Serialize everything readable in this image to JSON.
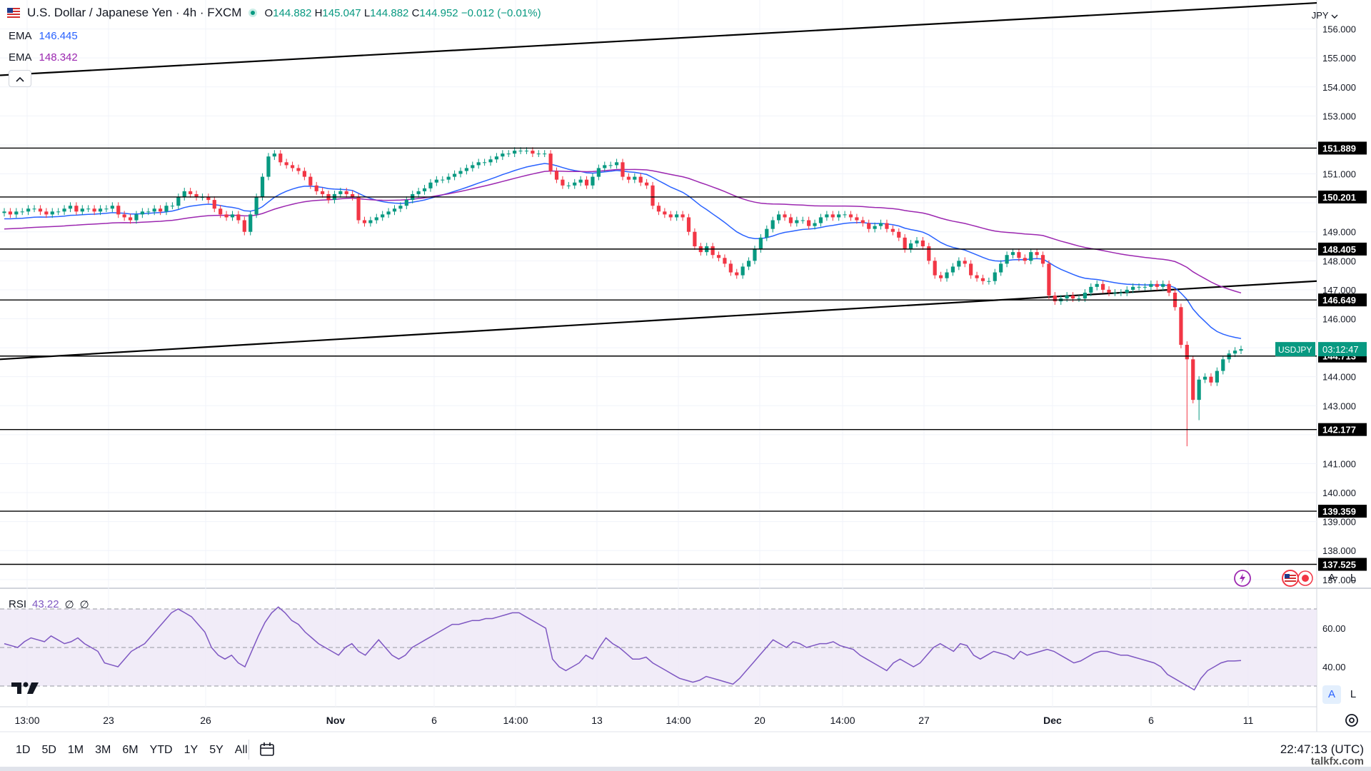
{
  "header": {
    "title": "U.S. Dollar / Japanese Yen · 4h · FXCM",
    "ohlc": {
      "o_label": "O",
      "o": "144.882",
      "h_label": "H",
      "h": "145.047",
      "l_label": "L",
      "l": "144.882",
      "c_label": "C",
      "c": "144.952",
      "change": "−0.012 (−0.01%)"
    }
  },
  "indicators": {
    "ema1": {
      "label": "EMA",
      "value": "146.445",
      "color": "#2962ff"
    },
    "ema2": {
      "label": "EMA",
      "value": "148.342",
      "color": "#9c27b0"
    },
    "rsi": {
      "label": "RSI",
      "value": "43.22",
      "extra1": "∅",
      "extra2": "∅",
      "color": "#7e57c2"
    }
  },
  "currency_tag": "JPY",
  "price_scale": {
    "ticks": [
      "156.000",
      "155.000",
      "154.000",
      "153.000",
      "151.000",
      "149.000",
      "148.000",
      "147.000",
      "146.000",
      "144.000",
      "143.000",
      "141.000",
      "140.000",
      "139.000",
      "138.000",
      "137.000"
    ]
  },
  "levels": [
    "151.889",
    "150.201",
    "148.405",
    "146.649",
    "144.713",
    "142.177",
    "139.359",
    "137.525"
  ],
  "symbol_label": {
    "name": "USDJPY",
    "countdown": "03:12:47"
  },
  "rsi_scale": [
    "60.00",
    "40.00"
  ],
  "time_axis": [
    "13:00",
    "23",
    "26",
    "Nov",
    "6",
    "14:00",
    "13",
    "14:00",
    "20",
    "14:00",
    "27",
    "Dec",
    "6",
    "11"
  ],
  "ranges": [
    "1D",
    "5D",
    "1M",
    "3M",
    "6M",
    "YTD",
    "1Y",
    "5Y",
    "All"
  ],
  "clock": "22:47:13 (UTC)",
  "scale_buttons": {
    "auto": "A",
    "log": "L"
  },
  "watermark": "talkfx.com",
  "colors": {
    "up": "#089981",
    "down": "#f23645",
    "rsi_band": "#ede7f6"
  },
  "chart_data": {
    "type": "candlestick",
    "symbol": "USDJPY",
    "timeframe": "4h",
    "ylim": [
      136.7,
      157.0
    ],
    "closes": [
      149.7,
      149.6,
      149.7,
      149.7,
      149.8,
      149.8,
      149.7,
      149.6,
      149.7,
      149.7,
      149.8,
      149.9,
      149.7,
      149.8,
      149.8,
      149.7,
      149.8,
      149.8,
      149.9,
      149.6,
      149.5,
      149.4,
      149.6,
      149.7,
      149.7,
      149.8,
      149.7,
      149.9,
      149.9,
      150.2,
      150.4,
      150.3,
      150.2,
      150.2,
      150.1,
      149.8,
      149.6,
      149.5,
      149.6,
      149.4,
      149.0,
      149.6,
      150.2,
      150.9,
      151.6,
      151.7,
      151.4,
      151.3,
      151.2,
      151.1,
      150.9,
      150.6,
      150.4,
      150.3,
      150.1,
      150.3,
      150.4,
      150.3,
      150.2,
      149.4,
      149.3,
      149.4,
      149.5,
      149.6,
      149.7,
      149.8,
      149.9,
      150.1,
      150.3,
      150.4,
      150.5,
      150.7,
      150.8,
      150.8,
      150.9,
      151.0,
      151.1,
      151.2,
      151.3,
      151.4,
      151.4,
      151.5,
      151.6,
      151.7,
      151.7,
      151.8,
      151.8,
      151.8,
      151.7,
      151.7,
      151.7,
      151.1,
      150.8,
      150.6,
      150.6,
      150.7,
      150.8,
      150.6,
      150.9,
      151.2,
      151.3,
      151.3,
      151.4,
      150.9,
      150.8,
      150.9,
      150.7,
      150.6,
      149.9,
      149.7,
      149.6,
      149.5,
      149.6,
      149.5,
      149.0,
      148.5,
      148.3,
      148.5,
      148.2,
      148.1,
      147.9,
      147.6,
      147.5,
      147.8,
      148.0,
      148.4,
      148.8,
      149.1,
      149.4,
      149.6,
      149.5,
      149.3,
      149.4,
      149.4,
      149.2,
      149.3,
      149.5,
      149.6,
      149.5,
      149.6,
      149.6,
      149.5,
      149.4,
      149.3,
      149.1,
      149.2,
      149.3,
      149.1,
      149.0,
      148.8,
      148.4,
      148.6,
      148.7,
      148.5,
      148.0,
      147.5,
      147.4,
      147.6,
      147.8,
      148.0,
      147.9,
      147.5,
      147.4,
      147.3,
      147.3,
      147.6,
      147.9,
      148.2,
      148.3,
      148.1,
      148.0,
      148.3,
      148.2,
      147.9,
      146.8,
      146.6,
      146.7,
      146.8,
      146.7,
      146.7,
      146.9,
      147.1,
      147.2,
      147.0,
      146.9,
      146.9,
      146.9,
      147.0,
      147.1,
      147.1,
      147.1,
      147.2,
      147.1,
      147.2,
      146.9,
      146.4,
      145.1,
      144.6,
      143.2,
      143.9,
      144.0,
      143.8,
      144.2,
      144.6,
      144.8,
      144.9,
      144.95
    ],
    "ema_fast": {
      "label": "EMA",
      "value": 146.445
    },
    "ema_slow": {
      "label": "EMA",
      "value": 148.342
    },
    "rsi": [
      52,
      51,
      50,
      53,
      55,
      54,
      53,
      56,
      54,
      52,
      53,
      55,
      52,
      50,
      48,
      42,
      41,
      40,
      44,
      48,
      50,
      52,
      56,
      60,
      64,
      68,
      70,
      68,
      66,
      62,
      58,
      50,
      46,
      44,
      46,
      42,
      40,
      48,
      56,
      63,
      68,
      71,
      68,
      64,
      62,
      58,
      55,
      52,
      50,
      48,
      46,
      50,
      52,
      48,
      46,
      50,
      54,
      50,
      46,
      44,
      46,
      50,
      52,
      54,
      56,
      58,
      60,
      62,
      62,
      63,
      64,
      64,
      65,
      65,
      66,
      67,
      68,
      68,
      66,
      64,
      62,
      60,
      44,
      40,
      38,
      40,
      42,
      46,
      44,
      50,
      55,
      52,
      50,
      47,
      44,
      44,
      45,
      42,
      40,
      38,
      36,
      34,
      33,
      32,
      33,
      35,
      34,
      33,
      32,
      31,
      34,
      38,
      42,
      46,
      50,
      54,
      52,
      50,
      53,
      52,
      50,
      51,
      52,
      52,
      53,
      51,
      50,
      49,
      46,
      44,
      42,
      40,
      38,
      42,
      44,
      42,
      40,
      42,
      46,
      50,
      52,
      50,
      48,
      52,
      51,
      46,
      44,
      46,
      48,
      47,
      46,
      44,
      48,
      46,
      47,
      48,
      49,
      48,
      46,
      44,
      42,
      43,
      45,
      47,
      48,
      48,
      47,
      46,
      46,
      45,
      44,
      43,
      42,
      40,
      36,
      34,
      32,
      30,
      28,
      34,
      38,
      40,
      42,
      43,
      43,
      43.22
    ],
    "rsi_bands": [
      70,
      50,
      30
    ]
  }
}
